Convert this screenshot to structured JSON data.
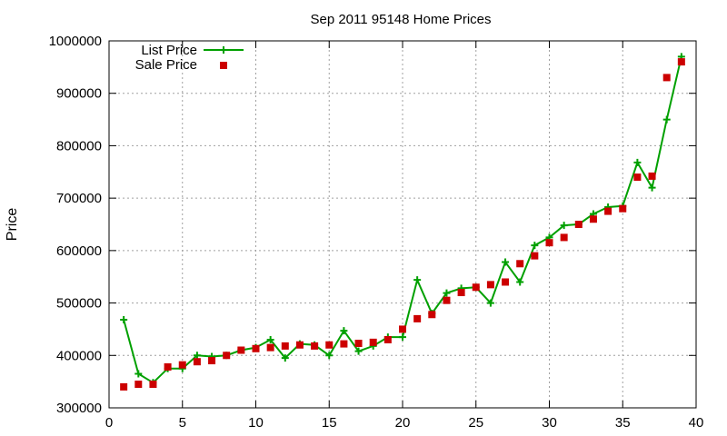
{
  "chart_data": {
    "type": "line",
    "title": "Sep 2011 95148 Home Prices",
    "xlabel": "",
    "ylabel": "Price",
    "xlim": [
      0,
      40
    ],
    "ylim": [
      300000,
      1000000
    ],
    "x_ticks": [
      0,
      5,
      10,
      15,
      20,
      25,
      30,
      35,
      40
    ],
    "y_ticks": [
      300000,
      400000,
      500000,
      600000,
      700000,
      800000,
      900000,
      1000000
    ],
    "grid": true,
    "legend_position": "top-left",
    "x": [
      1,
      2,
      3,
      4,
      5,
      6,
      7,
      8,
      9,
      10,
      11,
      12,
      13,
      14,
      15,
      16,
      17,
      18,
      19,
      20,
      21,
      22,
      23,
      24,
      25,
      26,
      27,
      28,
      29,
      30,
      31,
      32,
      33,
      34,
      35,
      36,
      37,
      38,
      39
    ],
    "series": [
      {
        "name": "List Price",
        "style": "line-with-plus",
        "color": "#00a000",
        "values": [
          468000,
          365000,
          348000,
          375000,
          375000,
          400000,
          398000,
          400000,
          410000,
          415000,
          430000,
          395000,
          422000,
          420000,
          400000,
          447000,
          408000,
          418000,
          435000,
          435000,
          544000,
          480000,
          519000,
          528000,
          530000,
          500000,
          578000,
          540000,
          610000,
          625000,
          648000,
          650000,
          670000,
          683000,
          685000,
          768000,
          720000,
          850000,
          970000
        ]
      },
      {
        "name": "Sale Price",
        "style": "square-points",
        "color": "#cc0000",
        "values": [
          340000,
          345000,
          345000,
          378000,
          382000,
          388000,
          390000,
          400000,
          410000,
          413000,
          415000,
          418000,
          420000,
          418000,
          420000,
          422000,
          423000,
          425000,
          430000,
          450000,
          470000,
          478000,
          505000,
          520000,
          530000,
          535000,
          540000,
          575000,
          590000,
          615000,
          625000,
          650000,
          660000,
          675000,
          680000,
          740000,
          742000,
          930000,
          960000
        ]
      }
    ]
  }
}
